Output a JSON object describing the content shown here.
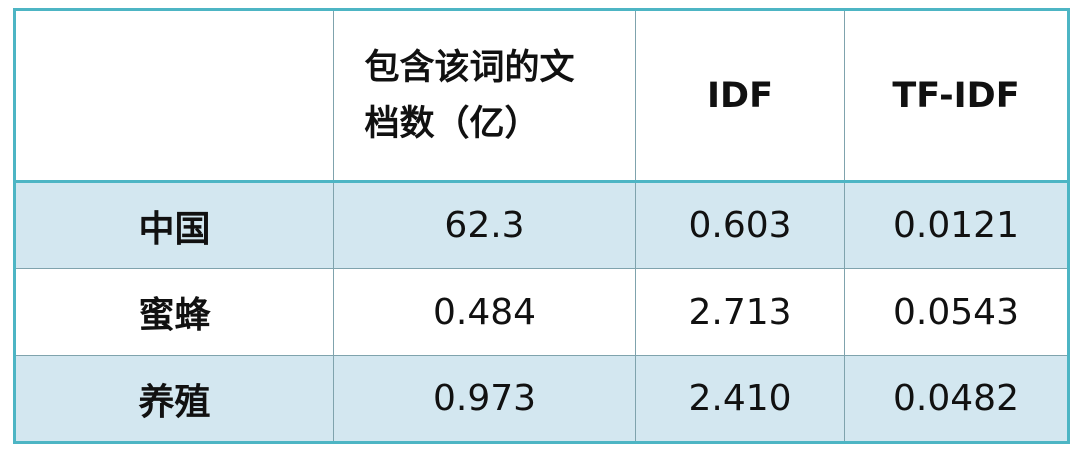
{
  "table": {
    "headers": [
      "",
      "包含该词的文档数（亿）",
      "IDF",
      "TF-IDF"
    ],
    "rows": [
      {
        "term": "中国",
        "docs": "62.3",
        "idf": "0.603",
        "tfidf": "0.0121"
      },
      {
        "term": "蜜蜂",
        "docs": "0.484",
        "idf": "2.713",
        "tfidf": "0.0543"
      },
      {
        "term": "养殖",
        "docs": "0.973",
        "idf": "2.410",
        "tfidf": "0.0482"
      }
    ]
  },
  "colors": {
    "border": "#4db5c4",
    "band": "#d3e7f0"
  }
}
